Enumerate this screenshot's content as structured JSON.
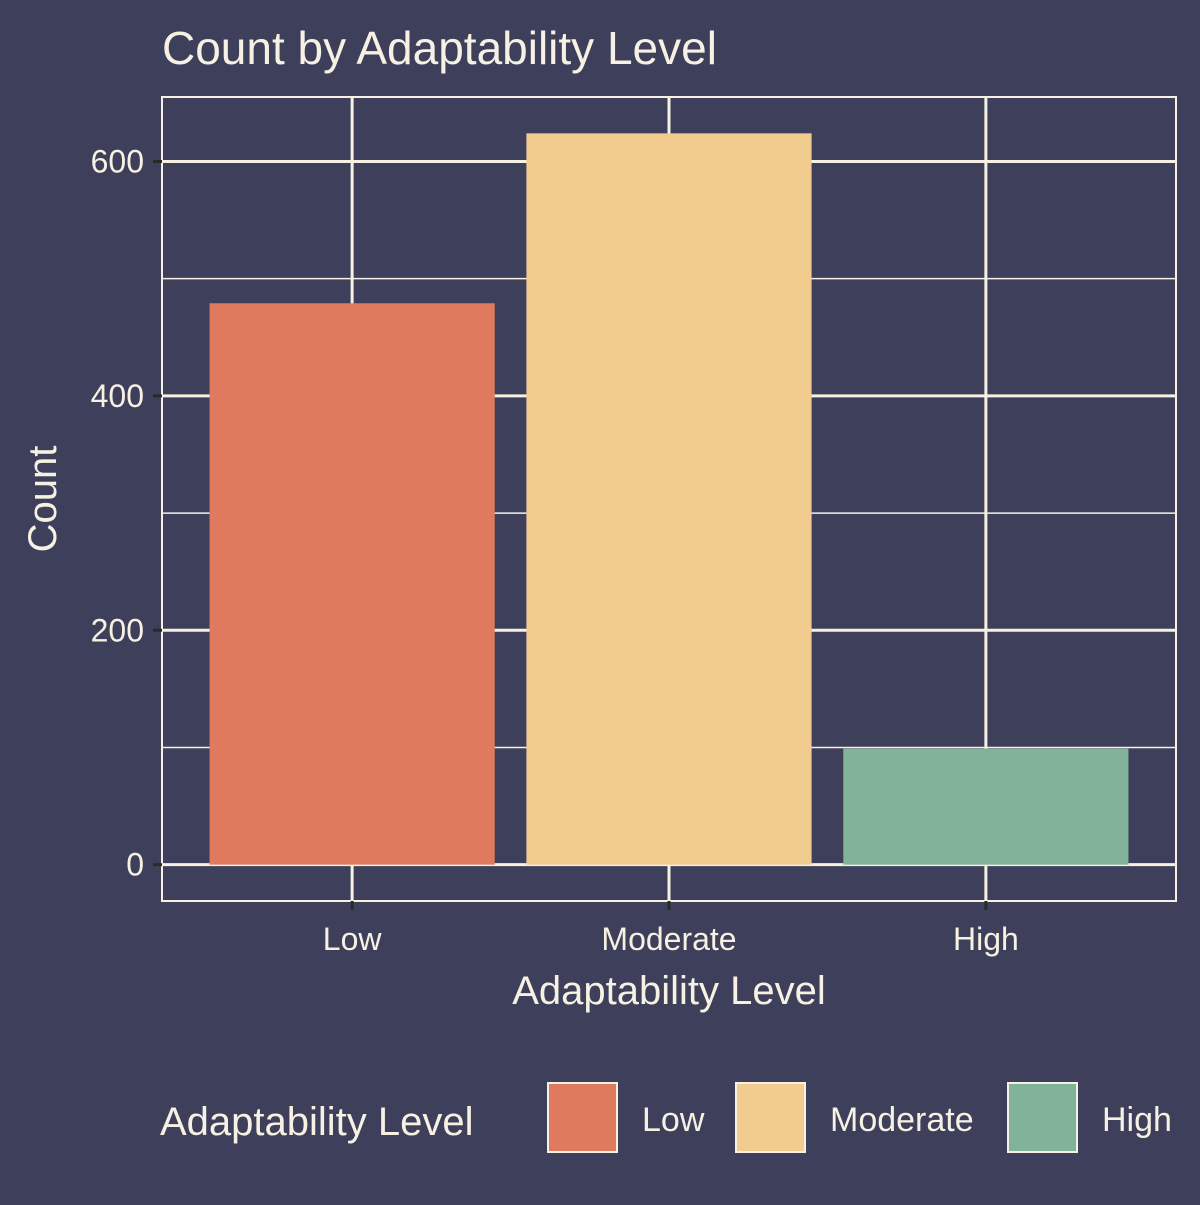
{
  "chart_data": {
    "type": "bar",
    "title": "Count by Adaptability Level",
    "xlabel": "Adaptability Level",
    "ylabel": "Count",
    "categories": [
      "Low",
      "Moderate",
      "High"
    ],
    "values": [
      479,
      624,
      99
    ],
    "ylim": [
      -31,
      655
    ],
    "yticks": [
      0,
      200,
      400,
      600
    ],
    "yticks_minor": [
      100,
      300,
      500
    ],
    "y_tick_labels": [
      "0",
      "200",
      "400",
      "600"
    ],
    "grid": true,
    "legend": {
      "title": "Adaptability Level",
      "position": "bottom",
      "entries": [
        "Low",
        "Moderate",
        "High"
      ]
    },
    "colors": {
      "background": "#3d3f5b",
      "grid": "#f7f1e3",
      "text": "#f7f1e3",
      "bars": [
        "#e07a5f",
        "#f2cc8f",
        "#81b29a"
      ]
    }
  }
}
